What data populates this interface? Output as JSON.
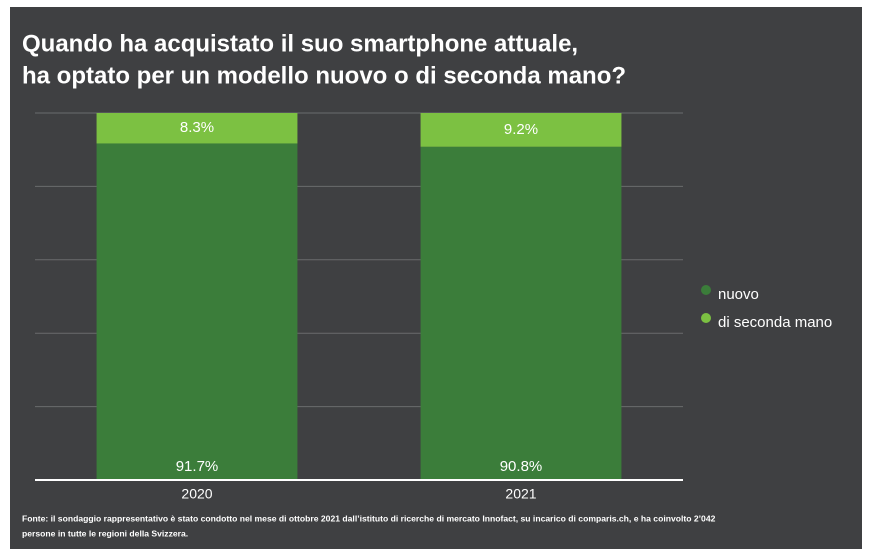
{
  "chart_data": {
    "type": "stacked_bar",
    "title": [
      "Quando ha acquistato il suo smartphone attuale,",
      "ha optato per un modello nuovo o di seconda mano?"
    ],
    "categories": [
      "2020",
      "2021"
    ],
    "series": [
      {
        "name": "nuovo",
        "color": "#3b7d3a",
        "values": [
          91.7,
          90.8
        ],
        "value_labels": [
          "91.7%",
          "90.8%"
        ]
      },
      {
        "name": "di seconda mano",
        "color": "#7cc142",
        "values": [
          8.3,
          9.2
        ],
        "value_labels": [
          "8.3%",
          "9.2%"
        ]
      }
    ],
    "ylim": [
      0,
      100
    ],
    "yticks": [
      0,
      20,
      40,
      60,
      80,
      100
    ],
    "ytick_labels": false,
    "grid": true,
    "legend": "right",
    "source": [
      "Fonte: il sondaggio rappresentativo è stato condotto nel mese di ottobre 2021 dall’istituto di ricerche di mercato Innofact, su incarico di comparis.ch, e ha coinvolto 2’042",
      "persone in tutte le regioni della Svizzera."
    ]
  }
}
